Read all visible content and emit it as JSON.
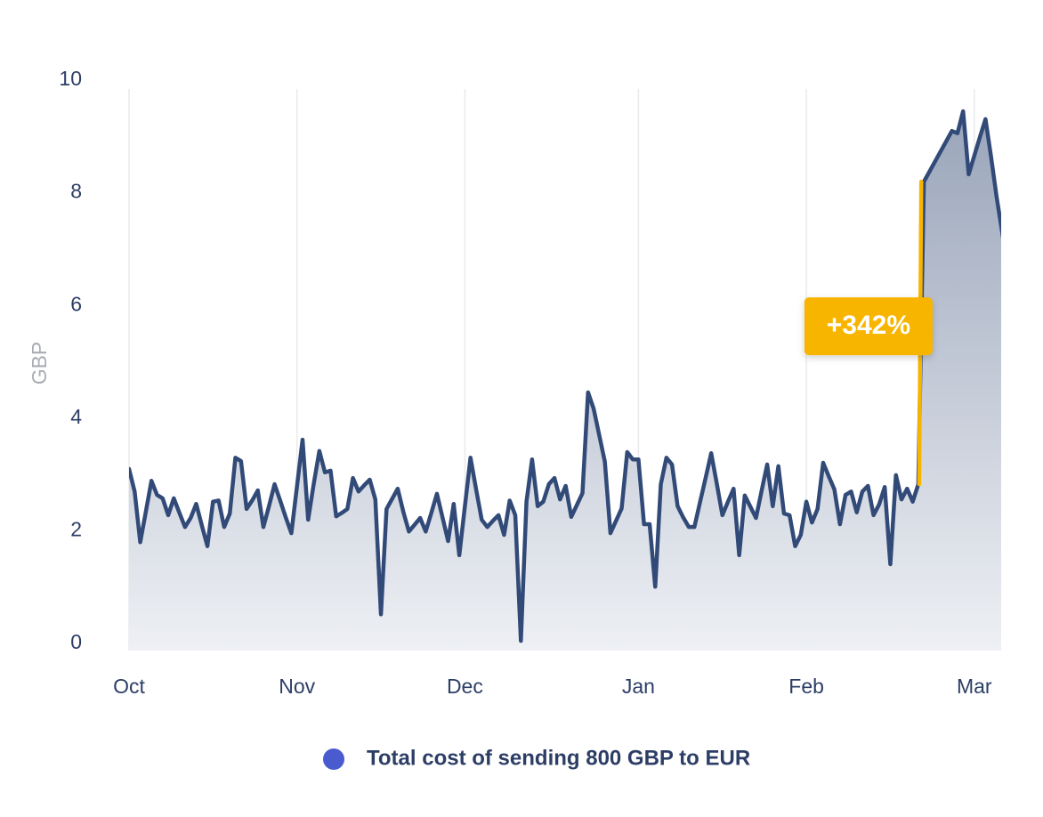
{
  "chart_data": {
    "type": "area",
    "y_label": "GBP",
    "annotation": "+342%",
    "annotation_color": "#f7b500",
    "ylim": [
      0,
      10
    ],
    "yticks": [
      0,
      2,
      4,
      6,
      8,
      10
    ],
    "categories": [
      "Oct",
      null,
      null,
      null,
      null,
      null,
      null,
      null,
      null,
      null,
      null,
      null,
      null,
      null,
      null,
      null,
      null,
      null,
      null,
      null,
      null,
      null,
      null,
      null,
      null,
      null,
      null,
      null,
      null,
      null,
      "Nov",
      null,
      null,
      null,
      null,
      null,
      null,
      null,
      null,
      null,
      null,
      null,
      null,
      null,
      null,
      null,
      null,
      null,
      null,
      null,
      null,
      null,
      null,
      null,
      null,
      null,
      null,
      null,
      null,
      null,
      "Dec",
      null,
      null,
      null,
      null,
      null,
      null,
      null,
      null,
      null,
      null,
      null,
      null,
      null,
      null,
      null,
      null,
      null,
      null,
      null,
      null,
      null,
      null,
      null,
      null,
      null,
      null,
      null,
      null,
      null,
      null,
      "Jan",
      null,
      null,
      null,
      null,
      null,
      null,
      null,
      null,
      null,
      null,
      null,
      null,
      null,
      null,
      null,
      null,
      null,
      null,
      null,
      null,
      null,
      null,
      null,
      null,
      null,
      null,
      null,
      null,
      null,
      "Feb",
      null,
      null,
      null,
      null,
      null,
      null,
      null,
      null,
      null,
      null,
      null,
      null,
      null,
      null,
      null,
      null,
      null,
      null,
      null,
      null,
      null,
      null,
      null,
      null,
      null,
      null,
      null,
      null,
      null,
      "Mar",
      null,
      null,
      null,
      null
    ],
    "series": [
      {
        "name": "Total cost of sending 800 GBP to EUR",
        "color": "#324a78",
        "legend_color": "#4a5bd0",
        "values": [
          3.16,
          2.76,
          1.86,
          2.4,
          2.95,
          2.7,
          2.64,
          2.34,
          2.64,
          2.38,
          2.13,
          2.29,
          2.54,
          2.16,
          1.79,
          2.58,
          2.6,
          2.13,
          2.37,
          3.36,
          3.3,
          2.45,
          2.6,
          2.78,
          2.13,
          2.5,
          2.89,
          2.6,
          2.3,
          2.02,
          2.85,
          3.68,
          2.26,
          2.9,
          3.48,
          3.1,
          3.13,
          2.32,
          2.38,
          2.45,
          3.0,
          2.76,
          2.87,
          2.97,
          2.62,
          0.58,
          2.45,
          2.63,
          2.81,
          2.4,
          2.05,
          2.17,
          2.29,
          2.05,
          2.38,
          2.72,
          2.3,
          1.88,
          2.54,
          1.63,
          2.5,
          3.36,
          2.8,
          2.26,
          2.13,
          2.24,
          2.34,
          1.99,
          2.6,
          2.34,
          0.11,
          2.58,
          3.33,
          2.5,
          2.58,
          2.89,
          3.0,
          2.62,
          2.86,
          2.31,
          2.52,
          2.73,
          4.52,
          4.23,
          3.76,
          3.29,
          2.02,
          2.24,
          2.46,
          3.46,
          3.33,
          3.33,
          2.18,
          2.18,
          1.07,
          2.89,
          3.36,
          3.24,
          2.5,
          2.3,
          2.13,
          2.13,
          2.57,
          3.0,
          3.44,
          2.9,
          2.34,
          2.58,
          2.81,
          1.63,
          2.69,
          2.49,
          2.29,
          2.77,
          3.24,
          2.5,
          3.21,
          2.37,
          2.34,
          1.79,
          1.99,
          2.58,
          2.21,
          2.45,
          3.27,
          3.03,
          2.8,
          2.18,
          2.7,
          2.76,
          2.39,
          2.76,
          2.86,
          2.34,
          2.53,
          2.84,
          1.47,
          3.05,
          2.62,
          2.81,
          2.58,
          2.89,
          8.26,
          8.44,
          8.62,
          8.8,
          8.98,
          9.16,
          9.12,
          9.51,
          8.39,
          8.72,
          9.05,
          9.37,
          8.7,
          7.98
        ]
      }
    ]
  }
}
